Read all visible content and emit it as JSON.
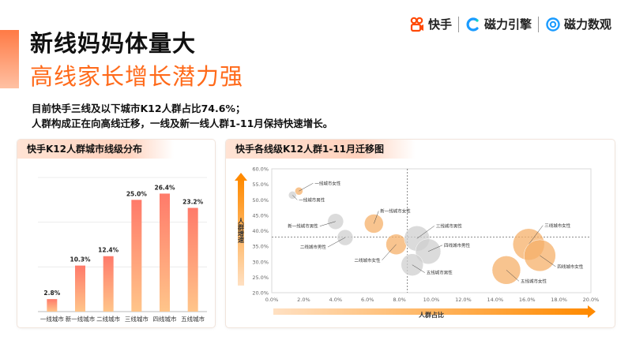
{
  "header": {
    "title_line1": "新线妈妈体量大",
    "title_line2": "高线家长增长潜力强",
    "desc_line1": "目前快手三线及以下城市K12人群占比74.6%；",
    "desc_line2": "人群构成正在向高线迁移，一线及新一线人群1-11月保持快速增长。"
  },
  "logos": [
    {
      "name": "快手",
      "icon": "kuaishou-icon",
      "color": "#ff4906"
    },
    {
      "name": "磁力引擎",
      "icon": "cili-engine-icon",
      "color": "#1a9bff"
    },
    {
      "name": "磁力数观",
      "icon": "cili-shuguan-icon",
      "color": "#1a9bff"
    }
  ],
  "left_panel": {
    "title": "快手K12人群城市线级分布"
  },
  "right_panel": {
    "title": "快手各线级K12人群1-11月迁移图"
  },
  "colors": {
    "accent": "#ff6a1a",
    "bar_top": "#ff7a6a",
    "bar_bottom": "#ffc58a",
    "bubble_orange": "#f5b06a",
    "bubble_gray": "#cfcfcf",
    "arrow": "#ff8a00"
  },
  "chart_data": [
    {
      "type": "bar",
      "title": "快手K12人群城市线级分布",
      "categories": [
        "一线城市",
        "新一线城市",
        "二线城市",
        "三线城市",
        "四线城市",
        "五线城市"
      ],
      "values": [
        2.8,
        10.3,
        12.4,
        25.0,
        26.4,
        23.2
      ],
      "value_labels": [
        "2.8%",
        "10.3%",
        "12.4%",
        "25.0%",
        "26.4%",
        "23.2%"
      ],
      "ylim": [
        0,
        30
      ],
      "grid": true
    },
    {
      "type": "scatter",
      "title": "快手各线级K12人群1-11月迁移图",
      "xlabel": "人群占比",
      "ylabel": "人群增速",
      "xlim": [
        0,
        20
      ],
      "ylim": [
        20,
        60
      ],
      "x_ticks": [
        "0.0%",
        "2.0%",
        "4.0%",
        "6.0%",
        "8.0%",
        "10.0%",
        "12.0%",
        "14.0%",
        "16.0%",
        "18.0%",
        "20.0%"
      ],
      "y_ticks": [
        "20.0%",
        "25.0%",
        "30.0%",
        "35.0%",
        "40.0%",
        "45.0%",
        "50.0%",
        "55.0%",
        "60.0%"
      ],
      "reference_x": 8.5,
      "reference_y": 38.0,
      "points": [
        {
          "label": "一线城市女性",
          "x": 1.7,
          "y": 52.8,
          "r": 5,
          "group": "female"
        },
        {
          "label": "一线城市男性",
          "x": 1.3,
          "y": 51.5,
          "r": 5,
          "group": "male"
        },
        {
          "label": "新一线城市女性",
          "x": 6.4,
          "y": 42.3,
          "r": 12,
          "group": "female"
        },
        {
          "label": "新一线城市男性",
          "x": 4.0,
          "y": 43.0,
          "r": 10,
          "group": "male"
        },
        {
          "label": "二线城市男性",
          "x": 4.6,
          "y": 37.8,
          "r": 10,
          "group": "male"
        },
        {
          "label": "二线城市女性",
          "x": 7.8,
          "y": 35.6,
          "r": 13,
          "group": "female"
        },
        {
          "label": "三线城市男性",
          "x": 9.1,
          "y": 37.5,
          "r": 16,
          "group": "male"
        },
        {
          "label": "四线城市男性",
          "x": 9.8,
          "y": 33.3,
          "r": 16,
          "group": "male"
        },
        {
          "label": "五线城市男性",
          "x": 8.8,
          "y": 29.0,
          "r": 14,
          "group": "male"
        },
        {
          "label": "三线城市女性",
          "x": 16.1,
          "y": 35.6,
          "r": 20,
          "group": "female"
        },
        {
          "label": "四线城市女性",
          "x": 16.8,
          "y": 32.0,
          "r": 20,
          "group": "female"
        },
        {
          "label": "五线城市女性",
          "x": 14.7,
          "y": 27.3,
          "r": 18,
          "group": "female"
        }
      ]
    }
  ]
}
